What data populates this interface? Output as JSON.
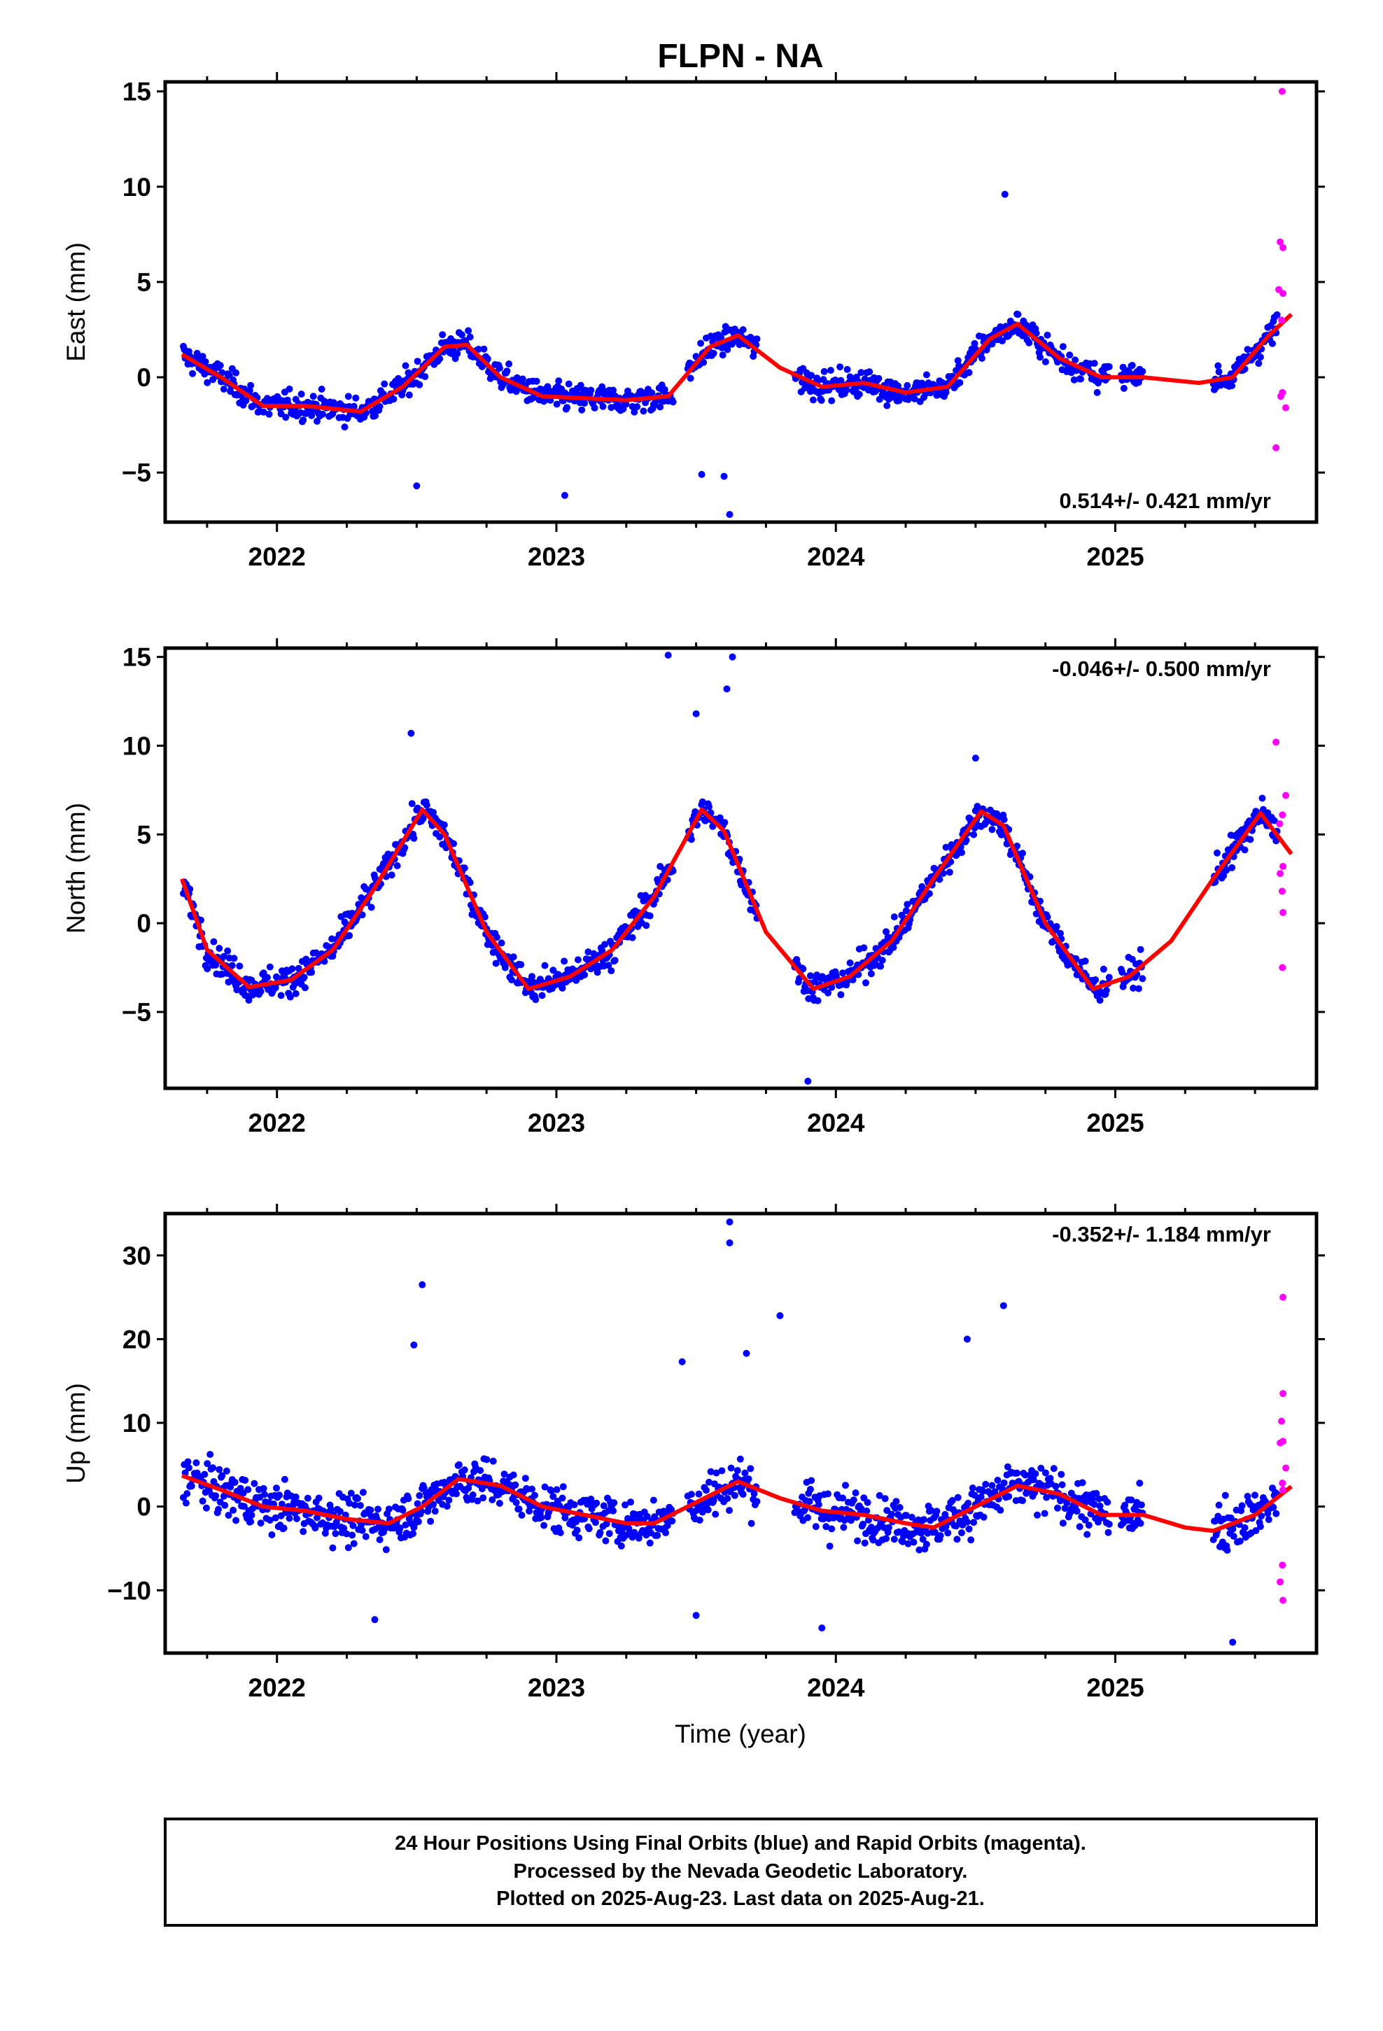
{
  "title": "FLPN - NA",
  "xlabel": "Time (year)",
  "footer": {
    "line1": "24 Hour Positions Using Final Orbits (blue) and Rapid Orbits (magenta).",
    "line2": "Processed by the Nevada Geodetic Laboratory.",
    "line3": "Plotted on 2025-Aug-23. Last data on 2025-Aug-21."
  },
  "colors": {
    "final": "#0000ff",
    "rapid": "#ff00ff",
    "model": "#ff0000",
    "frame": "#000000"
  },
  "chart_data": [
    {
      "type": "scatter",
      "ylabel": "East (mm)",
      "rate_label": "0.514+/- 0.421 mm/yr",
      "rate_position": "bottom-right",
      "xlim": [
        2021.6,
        2025.72
      ],
      "ylim": [
        -7.6,
        15.5
      ],
      "xticks": [
        2022,
        2023,
        2024,
        2025
      ],
      "yticks": [
        -5,
        0,
        5,
        10,
        15
      ],
      "series": [
        {
          "key": "final",
          "name": "Final Orbits (blue)",
          "color": "#0000ff",
          "outliers": [
            [
              2024.605,
              9.6
            ],
            [
              2023.52,
              -5.1
            ],
            [
              2023.6,
              -5.2
            ],
            [
              2023.62,
              -7.2
            ],
            [
              2022.5,
              -5.7
            ],
            [
              2023.03,
              -6.2
            ]
          ]
        },
        {
          "key": "rapid",
          "name": "Rapid Orbits (magenta)",
          "color": "#ff00ff",
          "points": [
            [
              2025.597,
              15.0
            ],
            [
              2025.59,
              7.1
            ],
            [
              2025.6,
              6.8
            ],
            [
              2025.585,
              4.6
            ],
            [
              2025.6,
              4.4
            ],
            [
              2025.595,
              3.0
            ],
            [
              2025.598,
              -0.8
            ],
            [
              2025.592,
              -1.0
            ],
            [
              2025.61,
              -1.6
            ],
            [
              2025.575,
              -3.7
            ]
          ]
        }
      ],
      "model": {
        "name": "fit",
        "color": "#ff0000",
        "x": [
          2021.66,
          2021.8,
          2021.95,
          2022.1,
          2022.3,
          2022.45,
          2022.6,
          2022.68,
          2022.8,
          2022.95,
          2023.1,
          2023.25,
          2023.4,
          2023.55,
          2023.65,
          2023.8,
          2023.95,
          2024.1,
          2024.25,
          2024.4,
          2024.55,
          2024.65,
          2024.8,
          2024.95,
          2025.1,
          2025.3,
          2025.42,
          2025.55,
          2025.63
        ],
        "y": [
          1.2,
          0.0,
          -1.5,
          -1.5,
          -1.8,
          -0.5,
          1.6,
          1.7,
          0.0,
          -1.0,
          -1.1,
          -1.2,
          -1.0,
          1.6,
          2.2,
          0.5,
          -0.5,
          -0.3,
          -0.8,
          -0.5,
          2.0,
          2.8,
          1.0,
          0.0,
          0.0,
          -0.3,
          0.0,
          2.2,
          3.3
        ]
      }
    },
    {
      "type": "scatter",
      "ylabel": "North (mm)",
      "rate_label": "-0.046+/- 0.500 mm/yr",
      "rate_position": "top-right",
      "xlim": [
        2021.6,
        2025.72
      ],
      "ylim": [
        -9.3,
        15.5
      ],
      "xticks": [
        2022,
        2023,
        2024,
        2025
      ],
      "yticks": [
        -5,
        0,
        5,
        10,
        15
      ],
      "series": [
        {
          "key": "final",
          "name": "Final Orbits (blue)",
          "color": "#0000ff",
          "outliers": [
            [
              2023.4,
              15.1
            ],
            [
              2023.63,
              15.0
            ],
            [
              2023.61,
              13.2
            ],
            [
              2023.5,
              11.8
            ],
            [
              2022.48,
              10.7
            ],
            [
              2024.5,
              9.3
            ],
            [
              2023.9,
              -8.9
            ]
          ]
        },
        {
          "key": "rapid",
          "name": "Rapid Orbits (magenta)",
          "color": "#ff00ff",
          "points": [
            [
              2025.575,
              10.2
            ],
            [
              2025.61,
              7.2
            ],
            [
              2025.598,
              6.1
            ],
            [
              2025.588,
              5.6
            ],
            [
              2025.6,
              3.2
            ],
            [
              2025.59,
              2.8
            ],
            [
              2025.597,
              1.8
            ],
            [
              2025.6,
              0.6
            ],
            [
              2025.598,
              -2.5
            ]
          ]
        }
      ],
      "model": {
        "name": "fit",
        "color": "#ff0000",
        "x": [
          2021.66,
          2021.75,
          2021.9,
          2022.05,
          2022.2,
          2022.35,
          2022.52,
          2022.6,
          2022.75,
          2022.9,
          2023.05,
          2023.2,
          2023.35,
          2023.52,
          2023.6,
          2023.75,
          2023.92,
          2024.05,
          2024.2,
          2024.35,
          2024.52,
          2024.6,
          2024.75,
          2024.92,
          2025.05,
          2025.2,
          2025.35,
          2025.52,
          2025.63
        ],
        "y": [
          2.5,
          -1.5,
          -3.6,
          -3.2,
          -1.5,
          2.0,
          6.4,
          5.0,
          -0.5,
          -3.7,
          -3.0,
          -1.5,
          1.5,
          6.4,
          5.2,
          -0.5,
          -3.7,
          -3.0,
          -1.0,
          2.5,
          6.3,
          5.5,
          0.0,
          -3.7,
          -3.0,
          -1.0,
          2.5,
          6.2,
          3.9
        ]
      }
    },
    {
      "type": "scatter",
      "ylabel": "Up (mm)",
      "rate_label": "-0.352+/- 1.184 mm/yr",
      "rate_position": "top-right",
      "xlim": [
        2021.6,
        2025.72
      ],
      "ylim": [
        -17.5,
        35.0
      ],
      "xticks": [
        2022,
        2023,
        2024,
        2025
      ],
      "yticks": [
        -10,
        0,
        10,
        20,
        30
      ],
      "series": [
        {
          "key": "final",
          "name": "Final Orbits (blue)",
          "color": "#0000ff",
          "outliers": [
            [
              2023.62,
              34.0
            ],
            [
              2023.62,
              31.5
            ],
            [
              2022.52,
              26.5
            ],
            [
              2024.6,
              24.0
            ],
            [
              2023.8,
              22.8
            ],
            [
              2024.47,
              20.0
            ],
            [
              2022.49,
              19.3
            ],
            [
              2023.68,
              18.3
            ],
            [
              2023.45,
              17.3
            ],
            [
              2022.35,
              -13.5
            ],
            [
              2023.5,
              -13.0
            ],
            [
              2023.95,
              -14.5
            ],
            [
              2025.42,
              -16.2
            ]
          ]
        },
        {
          "key": "rapid",
          "name": "Rapid Orbits (magenta)",
          "color": "#ff00ff",
          "points": [
            [
              2025.6,
              25.0
            ],
            [
              2025.6,
              13.5
            ],
            [
              2025.595,
              10.2
            ],
            [
              2025.59,
              7.6
            ],
            [
              2025.6,
              7.8
            ],
            [
              2025.61,
              4.6
            ],
            [
              2025.598,
              2.8
            ],
            [
              2025.6,
              2.0
            ],
            [
              2025.598,
              -7.0
            ],
            [
              2025.59,
              -9.0
            ],
            [
              2025.6,
              -11.2
            ]
          ]
        }
      ],
      "model": {
        "name": "fit",
        "color": "#ff0000",
        "x": [
          2021.66,
          2021.8,
          2021.95,
          2022.1,
          2022.25,
          2022.4,
          2022.52,
          2022.65,
          2022.8,
          2022.95,
          2023.1,
          2023.25,
          2023.35,
          2023.5,
          2023.65,
          2023.8,
          2023.95,
          2024.1,
          2024.25,
          2024.35,
          2024.5,
          2024.65,
          2024.8,
          2024.95,
          2025.1,
          2025.25,
          2025.35,
          2025.5,
          2025.63
        ],
        "y": [
          3.7,
          2.0,
          0.0,
          -0.5,
          -1.5,
          -2.0,
          0.0,
          3.3,
          2.5,
          0.0,
          -1.0,
          -2.0,
          -2.0,
          0.5,
          3.0,
          1.0,
          -0.5,
          -1.0,
          -2.0,
          -2.5,
          0.0,
          2.5,
          1.5,
          -1.0,
          -1.0,
          -2.5,
          -2.9,
          -1.0,
          2.4
        ]
      }
    }
  ]
}
